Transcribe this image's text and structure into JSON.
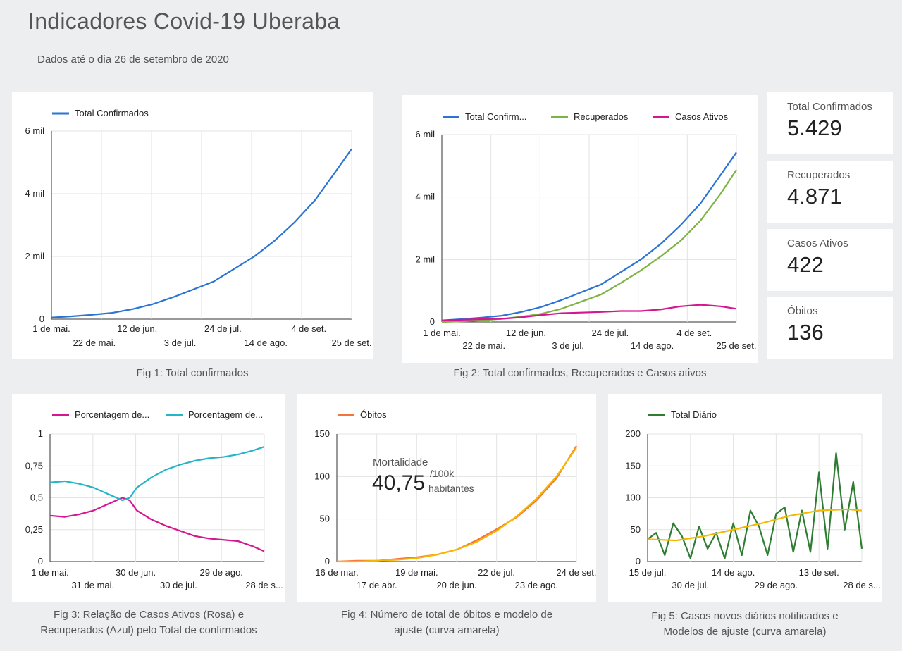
{
  "header": {
    "title": "Indicadores Covid-19 Uberaba",
    "subtitle": "Dados até o dia 26 de setembro de 2020"
  },
  "colors": {
    "blue": "#2a74d4",
    "green": "#7cb342",
    "pink": "#d6168f",
    "cyan": "#26b5c6",
    "orange": "#f4733c",
    "yellow": "#f5b800",
    "darkgreen": "#2e7d32"
  },
  "kpis": [
    {
      "label": "Total Confirmados",
      "value": "5.429"
    },
    {
      "label": "Recuperados",
      "value": "4.871"
    },
    {
      "label": "Casos Ativos",
      "value": "422"
    },
    {
      "label": "Óbitos",
      "value": "136"
    }
  ],
  "captions": {
    "fig1": "Fig 1: Total confirmados",
    "fig2": "Fig 2:  Total confirmados, Recuperados e Casos ativos",
    "fig3_line1": "Fig 3:  Relação de Casos Ativos (Rosa) e",
    "fig3_line2": "Recuperados (Azul)  pelo Total de confirmados",
    "fig4_line1": "Fig 4:  Número de total de óbitos e modelo de",
    "fig4_line2": "ajuste (curva amarela)",
    "fig5_line1": "Fig 5:  Casos novos diários notificados e",
    "fig5_line2": "Modelos de ajuste (curva amarela)"
  },
  "mortality": {
    "label": "Mortalidade",
    "value": "40,75",
    "unit_line1": "/100k",
    "unit_line2": "habitantes"
  },
  "chart_data": [
    {
      "id": "fig1",
      "type": "line",
      "legend": [
        "Total Confirmados"
      ],
      "y_ticks": [
        "0",
        "2 mil",
        "4 mil",
        "6 mil"
      ],
      "ylim": [
        0,
        6000
      ],
      "x_ticks_top": [
        "1 de mai.",
        "12 de jun.",
        "24 de jul.",
        "4 de set."
      ],
      "x_ticks_bottom": [
        "22 de mai.",
        "3 de jul.",
        "14 de ago.",
        "25 de set."
      ],
      "series": [
        {
          "name": "Total Confirmados",
          "color": "blue",
          "x_days": [
            0,
            10,
            20,
            30,
            40,
            50,
            60,
            70,
            80,
            90,
            100,
            110,
            120,
            130,
            140,
            148
          ],
          "values": [
            50,
            90,
            140,
            200,
            320,
            480,
            700,
            950,
            1200,
            1600,
            2000,
            2500,
            3100,
            3800,
            4700,
            5429
          ]
        }
      ]
    },
    {
      "id": "fig2",
      "type": "line",
      "legend": [
        "Total Confirm...",
        "Recuperados",
        "Casos Ativos"
      ],
      "y_ticks": [
        "0",
        "2 mil",
        "4 mil",
        "6 mil"
      ],
      "ylim": [
        0,
        6000
      ],
      "x_ticks_top": [
        "1 de mai.",
        "12 de jun.",
        "24 de jul.",
        "4 de set."
      ],
      "x_ticks_bottom": [
        "22 de mai.",
        "3 de jul.",
        "14 de ago.",
        "25 de set."
      ],
      "series": [
        {
          "name": "Total Confirm...",
          "color": "blue",
          "x_days": [
            0,
            10,
            20,
            30,
            40,
            50,
            60,
            70,
            80,
            90,
            100,
            110,
            120,
            130,
            140,
            148
          ],
          "values": [
            50,
            90,
            140,
            200,
            320,
            480,
            700,
            950,
            1200,
            1600,
            2000,
            2500,
            3100,
            3800,
            4700,
            5429
          ]
        },
        {
          "name": "Recuperados",
          "color": "green",
          "x_days": [
            0,
            10,
            20,
            30,
            40,
            50,
            60,
            70,
            80,
            90,
            100,
            110,
            120,
            130,
            140,
            148
          ],
          "values": [
            0,
            20,
            50,
            100,
            170,
            260,
            420,
            650,
            880,
            1250,
            1650,
            2100,
            2600,
            3250,
            4100,
            4871
          ]
        },
        {
          "name": "Casos Ativos",
          "color": "pink",
          "x_days": [
            0,
            10,
            20,
            30,
            40,
            50,
            60,
            70,
            80,
            90,
            100,
            110,
            120,
            130,
            140,
            148
          ],
          "values": [
            50,
            70,
            90,
            100,
            150,
            220,
            280,
            300,
            320,
            350,
            350,
            400,
            500,
            550,
            500,
            422
          ]
        }
      ]
    },
    {
      "id": "fig3",
      "type": "line",
      "legend": [
        "Porcentagem de...",
        "Porcentagem de..."
      ],
      "y_ticks": [
        "0",
        "0,25",
        "0,5",
        "0,75",
        "1"
      ],
      "ylim": [
        0,
        1
      ],
      "x_ticks_top": [
        "1 de mai.",
        "30 de jun.",
        "29 de ago."
      ],
      "x_ticks_bottom": [
        "31 de mai.",
        "30 de jul.",
        "28 de s..."
      ],
      "series": [
        {
          "name": "Porcentagem de...",
          "color": "pink",
          "x_days": [
            0,
            10,
            20,
            30,
            40,
            50,
            55,
            60,
            70,
            80,
            90,
            100,
            110,
            120,
            130,
            140,
            148
          ],
          "values": [
            0.36,
            0.35,
            0.37,
            0.4,
            0.45,
            0.5,
            0.48,
            0.4,
            0.33,
            0.28,
            0.24,
            0.2,
            0.18,
            0.17,
            0.16,
            0.12,
            0.08
          ]
        },
        {
          "name": "Porcentagem de...",
          "color": "cyan",
          "x_days": [
            0,
            10,
            20,
            30,
            40,
            50,
            55,
            60,
            70,
            80,
            90,
            100,
            110,
            120,
            130,
            140,
            148
          ],
          "values": [
            0.62,
            0.63,
            0.61,
            0.58,
            0.53,
            0.48,
            0.5,
            0.58,
            0.66,
            0.72,
            0.76,
            0.79,
            0.81,
            0.82,
            0.84,
            0.87,
            0.9
          ]
        }
      ]
    },
    {
      "id": "fig4",
      "type": "line",
      "legend": [
        "Óbitos"
      ],
      "y_ticks": [
        "0",
        "50",
        "100",
        "150"
      ],
      "ylim": [
        0,
        150
      ],
      "x_ticks_top": [
        "16 de mar.",
        "19 de mai.",
        "22 de jul.",
        "24 de set."
      ],
      "x_ticks_bottom": [
        "17 de abr.",
        "20 de jun.",
        "23 de ago."
      ],
      "series": [
        {
          "name": "Óbitos",
          "color": "orange",
          "x_days": [
            0,
            16,
            32,
            48,
            64,
            80,
            96,
            112,
            128,
            144,
            160,
            176,
            192
          ],
          "values": [
            0,
            1,
            1,
            3,
            5,
            8,
            14,
            25,
            38,
            52,
            72,
            98,
            136
          ]
        },
        {
          "name": "Modelo",
          "color": "yellow",
          "x_days": [
            0,
            16,
            32,
            48,
            64,
            80,
            96,
            112,
            128,
            144,
            160,
            176,
            192
          ],
          "values": [
            0,
            0,
            1,
            2,
            4,
            8,
            14,
            23,
            36,
            53,
            74,
            100,
            134
          ]
        }
      ]
    },
    {
      "id": "fig5",
      "type": "line",
      "legend": [
        "Total Diário"
      ],
      "y_ticks": [
        "0",
        "50",
        "100",
        "150",
        "200"
      ],
      "ylim": [
        0,
        200
      ],
      "x_ticks_top": [
        "15 de jul.",
        "14 de ago.",
        "13 de set."
      ],
      "x_ticks_bottom": [
        "30 de jul.",
        "29 de ago.",
        "28 de s..."
      ],
      "series": [
        {
          "name": "Total Diário",
          "color": "darkgreen",
          "x_days": [
            0,
            3,
            6,
            9,
            12,
            15,
            18,
            21,
            24,
            27,
            30,
            33,
            36,
            39,
            42,
            45,
            48,
            51,
            54,
            57,
            60,
            63,
            66,
            69,
            72,
            75
          ],
          "values": [
            35,
            45,
            10,
            60,
            40,
            5,
            55,
            20,
            45,
            5,
            60,
            10,
            80,
            55,
            10,
            75,
            85,
            15,
            80,
            15,
            140,
            20,
            170,
            50,
            125,
            20
          ]
        },
        {
          "name": "Modelo",
          "color": "yellow",
          "x_days": [
            0,
            10,
            20,
            30,
            40,
            50,
            60,
            70,
            75
          ],
          "values": [
            35,
            33,
            40,
            50,
            60,
            72,
            80,
            82,
            80
          ]
        }
      ]
    }
  ]
}
